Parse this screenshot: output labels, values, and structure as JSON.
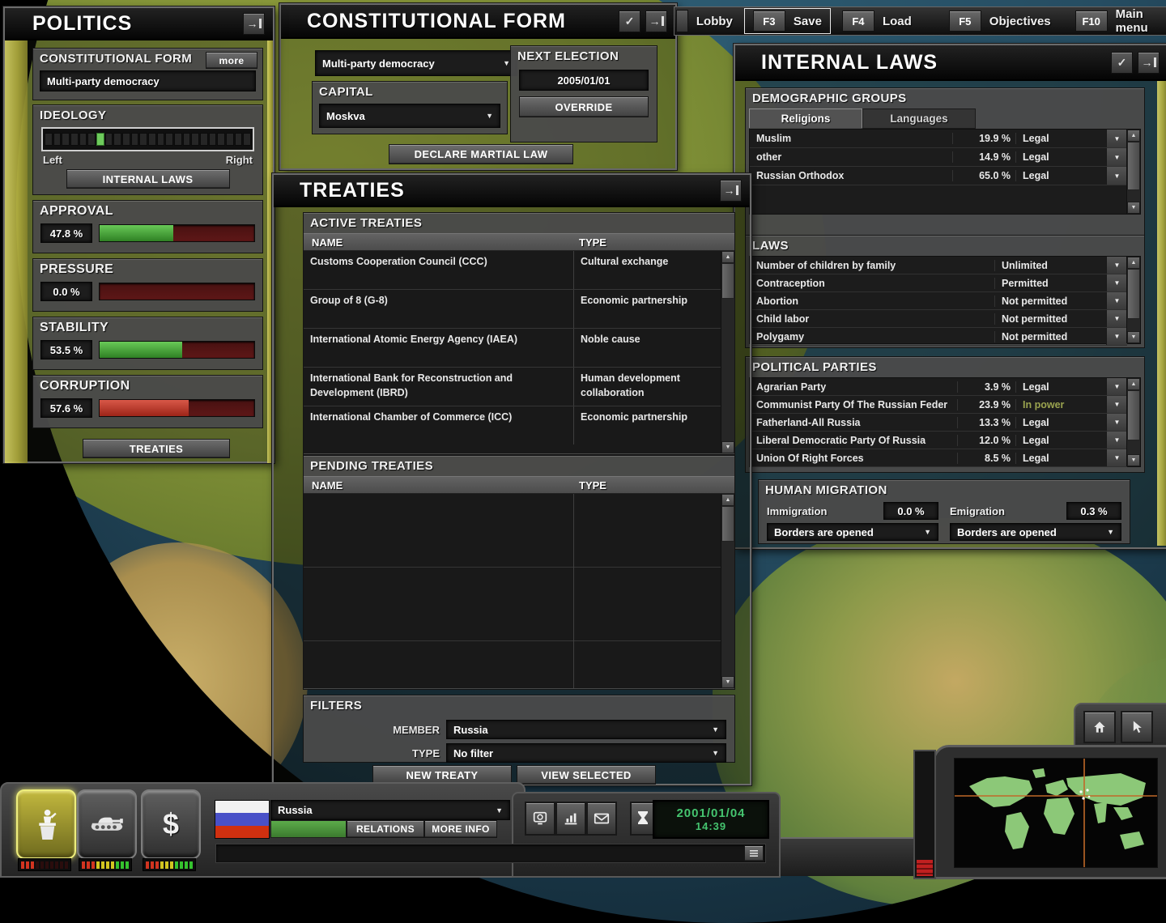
{
  "colors": {
    "accent_gold": "#b8b44a",
    "bar_green": "#4fae3c",
    "bar_red": "#c23b2a",
    "date_green": "#45c46f",
    "in_power_text": "#9aa34f"
  },
  "top_bar": {
    "lobby_label": "Lobby",
    "hotkeys": [
      {
        "key": "F3",
        "label": "Save"
      },
      {
        "key": "F4",
        "label": "Load"
      },
      {
        "key": "F5",
        "label": "Objectives"
      },
      {
        "key": "F10",
        "label": "Main menu"
      }
    ]
  },
  "politics_panel": {
    "title": "POLITICS",
    "constitutional_form": {
      "label": "CONSTITUTIONAL FORM",
      "more_label": "more",
      "value": "Multi-party democracy"
    },
    "ideology": {
      "label": "IDEOLOGY",
      "left_label": "Left",
      "right_label": "Right",
      "segments": 24,
      "active_segment": 6,
      "internal_laws_label": "INTERNAL LAWS"
    },
    "meters": [
      {
        "label": "APPROVAL",
        "value": "47.8 %",
        "percent": 47.8,
        "color": "green"
      },
      {
        "label": "PRESSURE",
        "value": "0.0 %",
        "percent": 0,
        "color": "green"
      },
      {
        "label": "STABILITY",
        "value": "53.5 %",
        "percent": 53.5,
        "color": "green"
      },
      {
        "label": "CORRUPTION",
        "value": "57.6 %",
        "percent": 57.6,
        "color": "red"
      }
    ],
    "treaties_label": "TREATIES"
  },
  "constitution_panel": {
    "title": "CONSTITUTIONAL FORM",
    "form_value": "Multi-party democracy",
    "capital_label": "CAPITAL",
    "capital_value": "Moskva",
    "next_election_label": "NEXT ELECTION",
    "next_election_date": "2005/01/01",
    "override_label": "OVERRIDE",
    "martial_law_label": "DECLARE MARTIAL LAW"
  },
  "treaties_panel": {
    "title": "TREATIES",
    "active_label": "ACTIVE TREATIES",
    "pending_label": "PENDING TREATIES",
    "name_column": "NAME",
    "type_column": "TYPE",
    "active_rows": [
      {
        "name": "Customs Cooperation Council (CCC)",
        "type": "Cultural exchange"
      },
      {
        "name": "Group of 8 (G-8)",
        "type": "Economic partnership"
      },
      {
        "name": "International Atomic Energy Agency (IAEA)",
        "type": "Noble cause"
      },
      {
        "name": "International Bank for Reconstruction and Development (IBRD)",
        "type": "Human development collaboration"
      },
      {
        "name": "International Chamber of Commerce (ICC)",
        "type": "Economic partnership"
      }
    ],
    "filters": {
      "label": "FILTERS",
      "member_label": "MEMBER",
      "member_value": "Russia",
      "type_label": "TYPE",
      "type_value": "No filter"
    },
    "new_treaty_label": "NEW TREATY",
    "view_selected_label": "VIEW SELECTED"
  },
  "internal_laws_panel": {
    "title": "INTERNAL LAWS",
    "demographic_groups": {
      "label": "DEMOGRAPHIC GROUPS",
      "tabs": [
        {
          "label": "Religions"
        },
        {
          "label": "Languages"
        }
      ],
      "rows": [
        {
          "name": "Muslim",
          "percent": "19.9 %",
          "status": "Legal"
        },
        {
          "name": "other",
          "percent": "14.9 %",
          "status": "Legal"
        },
        {
          "name": "Russian Orthodox",
          "percent": "65.0 %",
          "status": "Legal"
        }
      ]
    },
    "laws": {
      "label": "LAWS",
      "rows": [
        {
          "name": "Number of children by family",
          "status": "Unlimited"
        },
        {
          "name": "Contraception",
          "status": "Permitted"
        },
        {
          "name": "Abortion",
          "status": "Not permitted"
        },
        {
          "name": "Child labor",
          "status": "Not permitted"
        },
        {
          "name": "Polygamy",
          "status": "Not permitted"
        }
      ]
    },
    "political_parties": {
      "label": "POLITICAL PARTIES",
      "rows": [
        {
          "name": "Agrarian Party",
          "percent": "3.9 %",
          "status": "Legal"
        },
        {
          "name": "Communist Party Of The Russian Feder",
          "percent": "23.9 %",
          "status": "In power"
        },
        {
          "name": "Fatherland-All Russia",
          "percent": "13.3 %",
          "status": "Legal"
        },
        {
          "name": "Liberal Democratic Party Of Russia",
          "percent": "12.0 %",
          "status": "Legal"
        },
        {
          "name": "Union Of Right Forces",
          "percent": "8.5 %",
          "status": "Legal"
        }
      ]
    },
    "human_migration": {
      "label": "HUMAN MIGRATION",
      "immigration_label": "Immigration",
      "immigration_value": "0.0 %",
      "immigration_policy": "Borders are opened",
      "emigration_label": "Emigration",
      "emigration_value": "0.3 %",
      "emigration_policy": "Borders are opened"
    }
  },
  "bottom_bar": {
    "country_name": "Russia",
    "relations_label": "RELATIONS",
    "more_info_label": "MORE INFO",
    "date": "2001/01/04",
    "time": "14:39",
    "led_meters": [
      {
        "pattern": [
          "r",
          "r",
          "r",
          "o",
          "o",
          "o",
          "o",
          "o",
          "o",
          "o"
        ]
      },
      {
        "pattern": [
          "r",
          "r",
          "r",
          "y",
          "y",
          "y",
          "y",
          "g",
          "g",
          "g"
        ]
      },
      {
        "pattern": [
          "r",
          "r",
          "r",
          "y",
          "y",
          "y",
          "g",
          "g",
          "g",
          "g"
        ]
      }
    ]
  }
}
